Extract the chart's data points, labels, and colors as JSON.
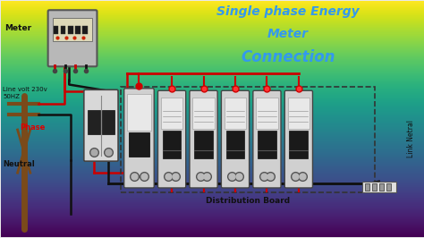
{
  "title_line1": "Single phase Energy",
  "title_line2": "Meter",
  "title_line3": "Connection",
  "title_color": "#3399ee",
  "bg_color": "#e8e8e8",
  "label_meter": "Meter",
  "label_line_volt": "Line volt 230v\n50HZ",
  "label_phase": "Phase",
  "label_neutral": "Neutral",
  "label_dist_board": "Distribution Board",
  "label_link_netral": "Link Netral",
  "phase_color": "#dd0000",
  "wire_red": "#cc0000",
  "wire_black": "#111111",
  "pole_color": "#7a4a1a",
  "meter_body": "#c0c0c0",
  "meter_face": "#d8d0b0",
  "breaker_body": "#d8d8d8",
  "breaker_dark": "#222222",
  "breaker_mid": "#888888"
}
